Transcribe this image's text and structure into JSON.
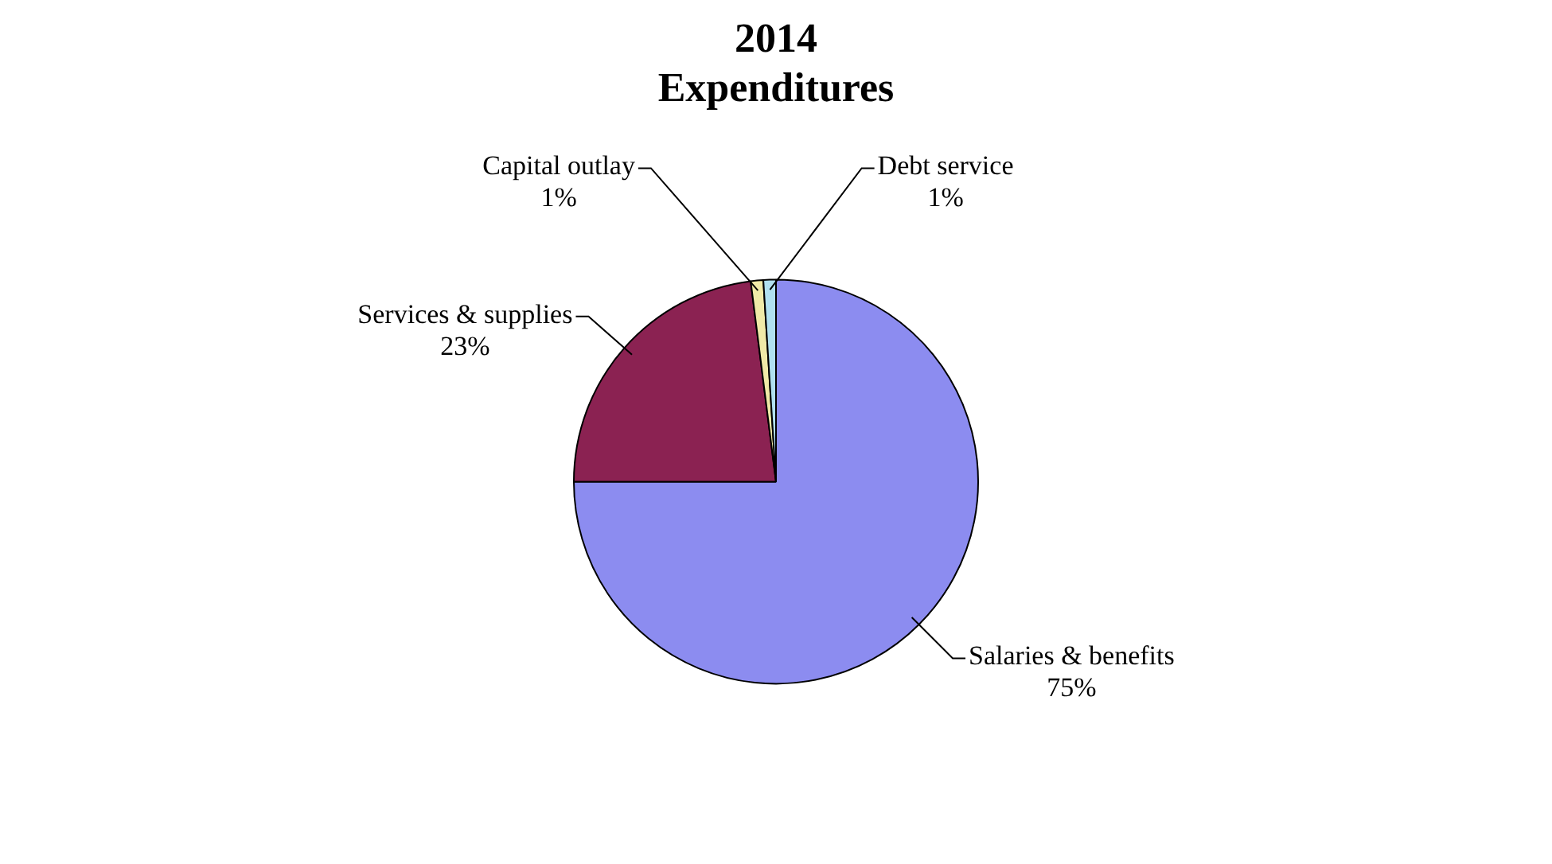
{
  "chart_data": {
    "type": "pie",
    "title": "2014\nExpenditures",
    "categories": [
      "Salaries & benefits",
      "Services & supplies",
      "Capital outlay",
      "Debt service"
    ],
    "values": [
      75,
      23,
      1,
      1
    ],
    "colors": [
      "#8c8cf0",
      "#8b2252",
      "#f0eaa8",
      "#b0e0f0"
    ],
    "value_labels": [
      "75%",
      "23%",
      "1%",
      "1%"
    ],
    "legend": false
  }
}
